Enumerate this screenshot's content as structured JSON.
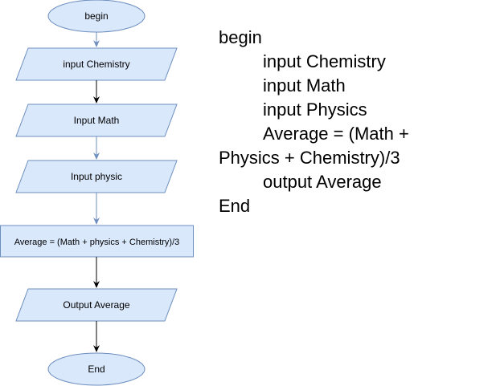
{
  "colors": {
    "node_fill": "#dae8fc",
    "node_stroke": "#6c8ebf",
    "arrow_blue": "#6c8ebf",
    "arrow_black": "#000000"
  },
  "flowchart": {
    "nodes": {
      "begin": "begin",
      "input_chemistry": "input Chemistry",
      "input_math": "Input Math",
      "input_physic": "Input physic",
      "average_calc": "Average = (Math + physics + Chemistry)/3",
      "output_average": "Output Average",
      "end": "End"
    }
  },
  "pseudocode": {
    "begin": "begin",
    "input_chemistry": "input Chemistry",
    "input_math": "input Math",
    "input_physics": "input Physics",
    "average_line1": "Average = (Math +",
    "average_line2": "Physics + Chemistry)/3",
    "output_average": "output Average",
    "end": "End"
  }
}
